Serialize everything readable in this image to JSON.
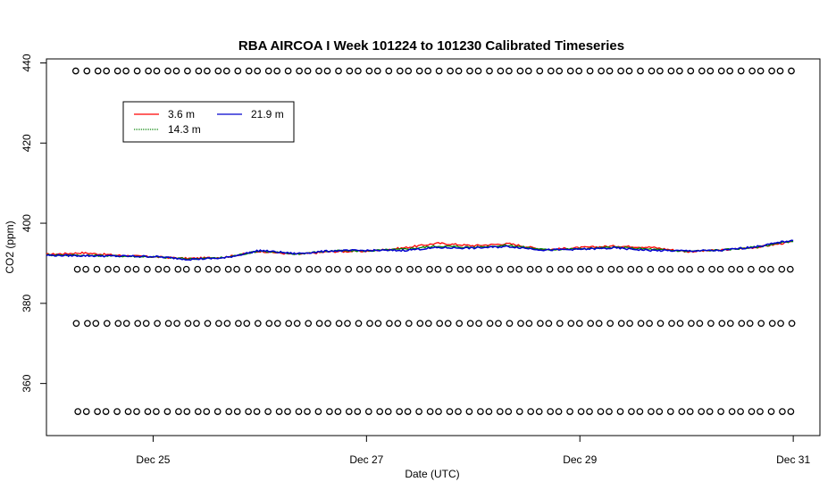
{
  "chart_data": {
    "type": "line",
    "title": "RBA AIRCOA I  Week 101224 to 101230  Calibrated Timeseries",
    "xlabel": "Date (UTC)",
    "ylabel": "CO2 (ppm)",
    "xlim": [
      "2010-12-24 00:00",
      "2010-12-31 06:00"
    ],
    "ylim": [
      347,
      441
    ],
    "x_ticks": [
      {
        "date": "2010-12-25",
        "label": "Dec 25"
      },
      {
        "date": "2010-12-27",
        "label": "Dec 27"
      },
      {
        "date": "2010-12-29",
        "label": "Dec 29"
      },
      {
        "date": "2010-12-31",
        "label": "Dec 31"
      }
    ],
    "y_ticks": [
      {
        "value": 360,
        "label": "360"
      },
      {
        "value": 380,
        "label": "380"
      },
      {
        "value": 400,
        "label": "400"
      },
      {
        "value": 420,
        "label": "420"
      },
      {
        "value": 440,
        "label": "440"
      }
    ],
    "legend": {
      "placement": "top-left",
      "entries": [
        {
          "name": "3.6 m",
          "color": "#ff0000"
        },
        {
          "name": "21.9 m",
          "color": "#0000cd"
        },
        {
          "name": "14.3 m",
          "color": "#008000"
        }
      ]
    },
    "series": [
      {
        "name": "3.6 m",
        "color": "#ff0000",
        "x": [
          "2010-12-24 00:00",
          "2010-12-24 08:00",
          "2010-12-24 16:00",
          "2010-12-25 00:00",
          "2010-12-25 08:00",
          "2010-12-25 16:00",
          "2010-12-26 00:00",
          "2010-12-26 08:00",
          "2010-12-26 16:00",
          "2010-12-27 00:00",
          "2010-12-27 08:00",
          "2010-12-27 16:00",
          "2010-12-28 00:00",
          "2010-12-28 08:00",
          "2010-12-28 16:00",
          "2010-12-29 00:00",
          "2010-12-29 08:00",
          "2010-12-29 16:00",
          "2010-12-30 00:00",
          "2010-12-30 08:00",
          "2010-12-30 16:00",
          "2010-12-31 00:00"
        ],
        "y": [
          392.2,
          392.6,
          392.0,
          391.6,
          391.2,
          391.5,
          393.0,
          392.2,
          392.9,
          393.0,
          393.8,
          395.0,
          394.4,
          394.9,
          393.4,
          393.9,
          394.3,
          394.0,
          392.9,
          393.3,
          394.0,
          395.4
        ]
      },
      {
        "name": "14.3 m",
        "color": "#008000",
        "x": [
          "2010-12-24 00:00",
          "2010-12-24 08:00",
          "2010-12-24 16:00",
          "2010-12-25 00:00",
          "2010-12-25 08:00",
          "2010-12-25 16:00",
          "2010-12-26 00:00",
          "2010-12-26 08:00",
          "2010-12-26 16:00",
          "2010-12-27 00:00",
          "2010-12-27 08:00",
          "2010-12-27 16:00",
          "2010-12-28 00:00",
          "2010-12-28 08:00",
          "2010-12-28 16:00",
          "2010-12-29 00:00",
          "2010-12-29 08:00",
          "2010-12-29 16:00",
          "2010-12-30 00:00",
          "2010-12-30 08:00",
          "2010-12-30 16:00",
          "2010-12-31 00:00"
        ],
        "y": [
          392.1,
          392.0,
          391.8,
          391.6,
          391.1,
          391.4,
          393.1,
          392.3,
          393.1,
          393.1,
          393.5,
          394.3,
          394.0,
          394.5,
          393.4,
          393.6,
          394.0,
          393.5,
          393.0,
          393.3,
          394.1,
          395.6
        ]
      },
      {
        "name": "21.9 m",
        "color": "#0000cd",
        "x": [
          "2010-12-24 00:00",
          "2010-12-24 08:00",
          "2010-12-24 16:00",
          "2010-12-25 00:00",
          "2010-12-25 08:00",
          "2010-12-25 16:00",
          "2010-12-26 00:00",
          "2010-12-26 08:00",
          "2010-12-26 16:00",
          "2010-12-27 00:00",
          "2010-12-27 08:00",
          "2010-12-27 16:00",
          "2010-12-28 00:00",
          "2010-12-28 08:00",
          "2010-12-28 16:00",
          "2010-12-29 00:00",
          "2010-12-29 08:00",
          "2010-12-29 16:00",
          "2010-12-30 00:00",
          "2010-12-30 08:00",
          "2010-12-30 16:00",
          "2010-12-31 00:00"
        ],
        "y": [
          392.0,
          391.9,
          391.8,
          391.7,
          391.0,
          391.3,
          393.2,
          392.4,
          393.1,
          393.2,
          393.2,
          393.9,
          393.8,
          394.2,
          393.3,
          393.5,
          393.8,
          393.2,
          393.1,
          393.2,
          394.2,
          395.8
        ]
      }
    ],
    "reference_points": {
      "note": "calibration standards (open circles, plotted at fixed levels)",
      "levels": [
        438,
        388.5,
        375,
        353
      ],
      "count_per_level": 72
    },
    "grid": false
  }
}
